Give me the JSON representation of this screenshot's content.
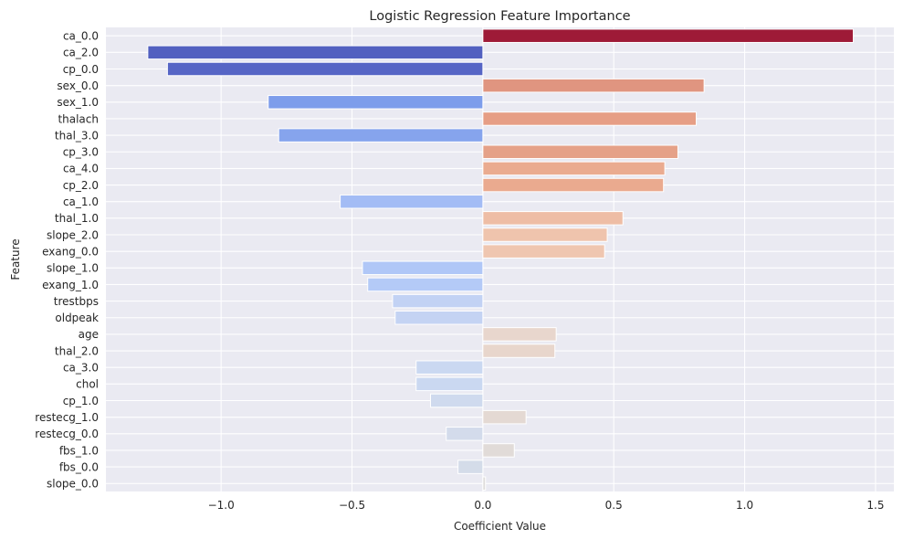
{
  "chart_data": {
    "type": "bar",
    "orientation": "horizontal",
    "title": "Logistic Regression Feature Importance",
    "xlabel": "Coefficient Value",
    "ylabel": "Feature",
    "xlim": [
      -1.44,
      1.57
    ],
    "xticks": [
      -1.0,
      -0.5,
      0.0,
      0.5,
      1.0,
      1.5
    ],
    "xtick_labels": [
      "−1.0",
      "−0.5",
      "0.0",
      "0.5",
      "1.0",
      "1.5"
    ],
    "grid": true,
    "palette": "coolwarm",
    "categories": [
      "ca_0.0",
      "ca_2.0",
      "cp_0.0",
      "sex_0.0",
      "sex_1.0",
      "thalach",
      "thal_3.0",
      "cp_3.0",
      "ca_4.0",
      "cp_2.0",
      "ca_1.0",
      "thal_1.0",
      "slope_2.0",
      "exang_0.0",
      "slope_1.0",
      "exang_1.0",
      "trestbps",
      "oldpeak",
      "age",
      "thal_2.0",
      "ca_3.0",
      "chol",
      "cp_1.0",
      "restecg_1.0",
      "restecg_0.0",
      "fbs_1.0",
      "fbs_0.0",
      "slope_0.0"
    ],
    "values": [
      1.415,
      -1.28,
      -1.205,
      0.845,
      -0.82,
      0.815,
      -0.78,
      0.745,
      0.695,
      0.69,
      -0.545,
      0.535,
      0.475,
      0.465,
      -0.46,
      -0.44,
      -0.345,
      -0.335,
      0.28,
      0.275,
      -0.255,
      -0.255,
      -0.2,
      0.165,
      -0.14,
      0.12,
      -0.095,
      0.01
    ],
    "colors": [
      "#9e1a37",
      "#5260c0",
      "#5665c5",
      "#e09580",
      "#7d9deb",
      "#e69e85",
      "#86a4ed",
      "#e5a188",
      "#eaab90",
      "#eaaa8f",
      "#a3bcf5",
      "#eebda5",
      "#efc4ad",
      "#efc6b0",
      "#b0c7f7",
      "#b4caf7",
      "#c2d2f4",
      "#c4d3f3",
      "#e8d6cd",
      "#e8d6cc",
      "#cad8f1",
      "#cad8f1",
      "#cfdaee",
      "#e4d9d3",
      "#d3dbeb",
      "#e1dbd8",
      "#d4dce9",
      "#dedcdb"
    ]
  }
}
